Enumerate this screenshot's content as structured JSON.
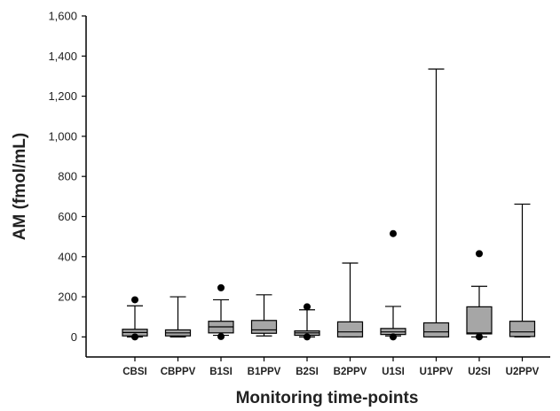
{
  "chart_data": {
    "type": "boxplot",
    "title": "",
    "xlabel": "Monitoring time-points",
    "ylabel": "AM (fmol/mL)",
    "ylim": [
      -100,
      1600
    ],
    "yticks": [
      0,
      200,
      400,
      600,
      800,
      1000,
      1200,
      1400,
      1600
    ],
    "ytick_labels": [
      "0",
      "200",
      "400",
      "600",
      "800",
      "1,000",
      "1,200",
      "1,400",
      "1,600"
    ],
    "grid": false,
    "box_fill": "#a6a6a6",
    "line_color": "#000000",
    "categories": [
      "CBSI",
      "CBPPV",
      "B1SI",
      "B1PPV",
      "B2SI",
      "B2PPV",
      "U1SI",
      "U1PPV",
      "U2SI",
      "U2PPV"
    ],
    "boxes": [
      {
        "whisker_low": 0,
        "q1": 5,
        "median": 22,
        "q3": 38,
        "whisker_high": 155,
        "outliers": [
          185,
          0
        ]
      },
      {
        "whisker_low": 0,
        "q1": 5,
        "median": 20,
        "q3": 35,
        "whisker_high": 200,
        "outliers": []
      },
      {
        "whisker_low": 8,
        "q1": 20,
        "median": 50,
        "q3": 78,
        "whisker_high": 185,
        "outliers": [
          245,
          2
        ]
      },
      {
        "whisker_low": 5,
        "q1": 18,
        "median": 35,
        "q3": 82,
        "whisker_high": 210,
        "outliers": []
      },
      {
        "whisker_low": 0,
        "q1": 8,
        "median": 20,
        "q3": 30,
        "whisker_high": 135,
        "outliers": [
          150,
          0
        ]
      },
      {
        "whisker_low": 0,
        "q1": 0,
        "median": 25,
        "q3": 75,
        "whisker_high": 368,
        "outliers": []
      },
      {
        "whisker_low": 5,
        "q1": 12,
        "median": 25,
        "q3": 42,
        "whisker_high": 152,
        "outliers": [
          515,
          0
        ]
      },
      {
        "whisker_low": 0,
        "q1": 0,
        "median": 25,
        "q3": 70,
        "whisker_high": 1335,
        "outliers": []
      },
      {
        "whisker_low": 0,
        "q1": 15,
        "median": 20,
        "q3": 150,
        "whisker_high": 252,
        "outliers": [
          415,
          0
        ]
      },
      {
        "whisker_low": 0,
        "q1": 2,
        "median": 25,
        "q3": 78,
        "whisker_high": 662,
        "outliers": []
      }
    ]
  }
}
